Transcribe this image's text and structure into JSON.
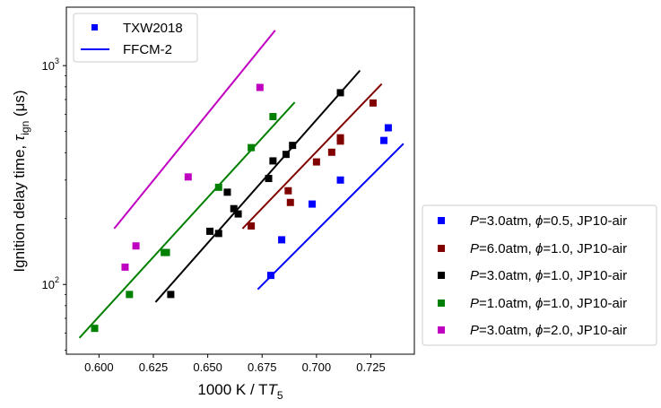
{
  "chart_data": {
    "type": "scatter",
    "x_scale": "linear",
    "y_scale": "log",
    "xlim": [
      0.585,
      0.745
    ],
    "ylim": [
      48,
      1850
    ],
    "xlabel": "1000 K / T",
    "xlabel_subscript": "5",
    "ylabel_main": "Ignition delay time, ",
    "ylabel_tau": "τ",
    "ylabel_sub": "ign",
    "ylabel_unit": " (μs)",
    "xticks": [
      0.6,
      0.625,
      0.65,
      0.675,
      0.7,
      0.725
    ],
    "xtick_labels": [
      "0.600",
      "0.625",
      "0.650",
      "0.675",
      "0.700",
      "0.725"
    ],
    "yticks": [
      100,
      1000
    ],
    "ytick_base": "10",
    "ytick_exponents": [
      "2",
      "3"
    ],
    "legend_inner": {
      "placement": "top-left",
      "entries": [
        {
          "label": "TXW2018",
          "kind": "marker",
          "color": "#0000ff"
        },
        {
          "label": "FFCM-2",
          "kind": "line",
          "color": "#0000ff"
        }
      ]
    },
    "legend_outer": {
      "placement": "right-bottom",
      "p_sym": "P",
      "phi_sym": "ϕ",
      "entries": [
        {
          "p": "=3.0atm, ",
          "phi": "=0.5, JP10-air",
          "color": "#0000ff"
        },
        {
          "p": "=6.0atm, ",
          "phi": "=1.0, JP10-air",
          "color": "#800000"
        },
        {
          "p": "=3.0atm, ",
          "phi": "=1.0, JP10-air",
          "color": "#000000"
        },
        {
          "p": "=1.0atm, ",
          "phi": "=1.0, JP10-air",
          "color": "#008000"
        },
        {
          "p": "=3.0atm, ",
          "phi": "=2.0, JP10-air",
          "color": "#c000c0"
        }
      ]
    },
    "series": [
      {
        "name": "P=3.0atm, phi=0.5, JP10-air",
        "color": "#0000ff",
        "points": [
          [
            0.679,
            110
          ],
          [
            0.684,
            160
          ],
          [
            0.698,
            233
          ],
          [
            0.711,
            300
          ],
          [
            0.731,
            455
          ],
          [
            0.733,
            520
          ]
        ],
        "model_line": [
          [
            0.673,
            95
          ],
          [
            0.74,
            440
          ]
        ]
      },
      {
        "name": "P=6.0atm, phi=1.0, JP10-air",
        "color": "#800000",
        "points": [
          [
            0.67,
            185
          ],
          [
            0.687,
            268
          ],
          [
            0.688,
            237
          ],
          [
            0.7,
            363
          ],
          [
            0.707,
            402
          ],
          [
            0.711,
            452
          ],
          [
            0.711,
            468
          ],
          [
            0.726,
            675
          ]
        ],
        "model_line": [
          [
            0.666,
            180
          ],
          [
            0.73,
            825
          ]
        ]
      },
      {
        "name": "P=3.0atm, phi=1.0, JP10-air",
        "color": "#000000",
        "points": [
          [
            0.633,
            90
          ],
          [
            0.651,
            175
          ],
          [
            0.655,
            171
          ],
          [
            0.659,
            264
          ],
          [
            0.662,
            222
          ],
          [
            0.664,
            210
          ],
          [
            0.678,
            305
          ],
          [
            0.68,
            367
          ],
          [
            0.686,
            393
          ],
          [
            0.689,
            432
          ],
          [
            0.711,
            752
          ]
        ],
        "model_line": [
          [
            0.626,
            83
          ],
          [
            0.72,
            950
          ]
        ]
      },
      {
        "name": "P=1.0atm, phi=1.0, JP10-air",
        "color": "#008000",
        "points": [
          [
            0.598,
            63
          ],
          [
            0.614,
            90
          ],
          [
            0.63,
            140
          ],
          [
            0.631,
            140
          ],
          [
            0.655,
            278
          ],
          [
            0.67,
            422
          ],
          [
            0.68,
            585
          ]
        ],
        "model_line": [
          [
            0.591,
            57
          ],
          [
            0.69,
            680
          ]
        ]
      },
      {
        "name": "P=3.0atm, phi=2.0, JP10-air",
        "color": "#c000c0",
        "points": [
          [
            0.612,
            120
          ],
          [
            0.617,
            150
          ],
          [
            0.641,
            310
          ],
          [
            0.674,
            795
          ]
        ],
        "model_line": [
          [
            0.607,
            180
          ],
          [
            0.681,
            1450
          ]
        ]
      }
    ]
  }
}
